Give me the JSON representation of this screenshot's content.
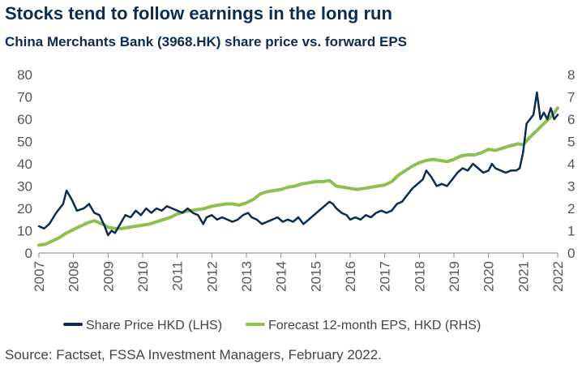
{
  "title": "Stocks tend to follow earnings in the long run",
  "subtitle": "China Merchants Bank (3968.HK) share price vs. forward EPS",
  "source": "Source: Factset, FSSA Investment Managers, February 2022.",
  "colors": {
    "share_price": "#0d2c54",
    "eps": "#8dc04f",
    "axis": "#8a8a8a"
  },
  "chart_data": {
    "type": "line",
    "x_ticks": [
      "2007",
      "2008",
      "2009",
      "2010",
      "2011",
      "2012",
      "2013",
      "2014",
      "2015",
      "2016",
      "2017",
      "2018",
      "2019",
      "2020",
      "2021",
      "2022"
    ],
    "y_left": {
      "ticks": [
        "0",
        "10",
        "20",
        "30",
        "40",
        "50",
        "60",
        "70",
        "80"
      ],
      "ylim": [
        0,
        80
      ]
    },
    "y_right": {
      "ticks": [
        "0",
        "1",
        "2",
        "3",
        "4",
        "5",
        "6",
        "7",
        "8"
      ],
      "ylim": [
        0,
        8
      ]
    },
    "legend_position": "bottom",
    "series": [
      {
        "name": "Share Price HKD (LHS)",
        "axis": "left",
        "color": "#0d2c54",
        "x": [
          2007.0,
          2007.15,
          2007.3,
          2007.5,
          2007.7,
          2007.8,
          2007.95,
          2008.1,
          2008.3,
          2008.45,
          2008.6,
          2008.75,
          2008.9,
          2009.0,
          2009.1,
          2009.2,
          2009.35,
          2009.5,
          2009.65,
          2009.8,
          2009.95,
          2010.1,
          2010.25,
          2010.4,
          2010.55,
          2010.7,
          2010.85,
          2011.0,
          2011.15,
          2011.3,
          2011.45,
          2011.6,
          2011.75,
          2011.85,
          2012.0,
          2012.15,
          2012.3,
          2012.45,
          2012.6,
          2012.75,
          2012.9,
          2013.05,
          2013.15,
          2013.3,
          2013.45,
          2013.6,
          2013.75,
          2013.9,
          2014.05,
          2014.2,
          2014.35,
          2014.5,
          2014.65,
          2014.8,
          2014.95,
          2015.1,
          2015.25,
          2015.4,
          2015.5,
          2015.6,
          2015.75,
          2015.9,
          2016.0,
          2016.15,
          2016.3,
          2016.45,
          2016.6,
          2016.75,
          2016.9,
          2017.05,
          2017.2,
          2017.35,
          2017.5,
          2017.65,
          2017.8,
          2017.95,
          2018.1,
          2018.2,
          2018.35,
          2018.5,
          2018.65,
          2018.8,
          2018.95,
          2019.1,
          2019.25,
          2019.4,
          2019.55,
          2019.7,
          2019.85,
          2020.0,
          2020.1,
          2020.2,
          2020.35,
          2020.5,
          2020.65,
          2020.8,
          2020.9,
          2021.0,
          2021.1,
          2021.2,
          2021.3,
          2021.4,
          2021.5,
          2021.6,
          2021.7,
          2021.8,
          2021.9,
          2022.0
        ],
        "values": [
          12,
          11,
          13,
          18,
          22,
          28,
          24,
          19,
          20,
          22,
          18,
          17,
          12,
          8,
          10,
          9,
          13,
          17,
          16,
          19,
          17,
          20,
          18,
          20,
          19,
          21,
          20,
          19,
          18,
          20,
          18,
          17,
          13,
          16,
          17,
          15,
          16,
          15,
          14,
          15,
          17,
          18,
          16,
          15,
          13,
          14,
          15,
          16,
          14,
          15,
          14,
          16,
          13,
          15,
          17,
          19,
          21,
          23,
          22,
          20,
          18,
          17,
          15,
          16,
          15,
          17,
          16,
          18,
          19,
          18,
          19,
          22,
          23,
          26,
          29,
          31,
          33,
          37,
          34,
          30,
          31,
          30,
          33,
          36,
          38,
          37,
          40,
          38,
          36,
          37,
          40,
          38,
          37,
          36,
          37,
          37,
          38,
          45,
          58,
          60,
          62,
          72,
          60,
          63,
          60,
          65,
          60,
          62
        ]
      },
      {
        "name": "Forecast 12-month EPS, HKD (RHS)",
        "axis": "right",
        "color": "#8dc04f",
        "x": [
          2007.0,
          2007.2,
          2007.4,
          2007.6,
          2007.8,
          2008.0,
          2008.2,
          2008.4,
          2008.6,
          2008.75,
          2008.9,
          2009.0,
          2009.2,
          2009.4,
          2009.6,
          2009.8,
          2010.0,
          2010.2,
          2010.4,
          2010.6,
          2010.8,
          2011.0,
          2011.2,
          2011.4,
          2011.6,
          2011.8,
          2012.0,
          2012.2,
          2012.4,
          2012.6,
          2012.8,
          2013.0,
          2013.2,
          2013.4,
          2013.6,
          2013.8,
          2014.0,
          2014.2,
          2014.4,
          2014.6,
          2014.8,
          2015.0,
          2015.2,
          2015.4,
          2015.6,
          2015.8,
          2016.0,
          2016.2,
          2016.4,
          2016.6,
          2016.8,
          2017.0,
          2017.2,
          2017.4,
          2017.6,
          2017.8,
          2018.0,
          2018.2,
          2018.4,
          2018.6,
          2018.8,
          2019.0,
          2019.2,
          2019.4,
          2019.6,
          2019.8,
          2020.0,
          2020.2,
          2020.4,
          2020.6,
          2020.75,
          2020.85,
          2021.0,
          2021.2,
          2021.4,
          2021.6,
          2021.8,
          2022.0
        ],
        "values": [
          0.35,
          0.4,
          0.55,
          0.7,
          0.9,
          1.05,
          1.2,
          1.35,
          1.45,
          1.35,
          1.25,
          1.15,
          1.1,
          1.1,
          1.15,
          1.2,
          1.25,
          1.3,
          1.4,
          1.5,
          1.6,
          1.75,
          1.85,
          1.9,
          1.95,
          2.0,
          2.1,
          2.15,
          2.2,
          2.2,
          2.15,
          2.25,
          2.4,
          2.65,
          2.75,
          2.8,
          2.85,
          2.95,
          3.0,
          3.1,
          3.15,
          3.2,
          3.2,
          3.25,
          3.0,
          2.95,
          2.9,
          2.85,
          2.9,
          2.95,
          3.0,
          3.05,
          3.2,
          3.5,
          3.7,
          3.9,
          4.05,
          4.15,
          4.2,
          4.15,
          4.1,
          4.2,
          4.35,
          4.4,
          4.4,
          4.5,
          4.65,
          4.6,
          4.7,
          4.8,
          4.85,
          4.9,
          4.85,
          5.2,
          5.5,
          5.8,
          6.1,
          6.5
        ]
      }
    ]
  }
}
